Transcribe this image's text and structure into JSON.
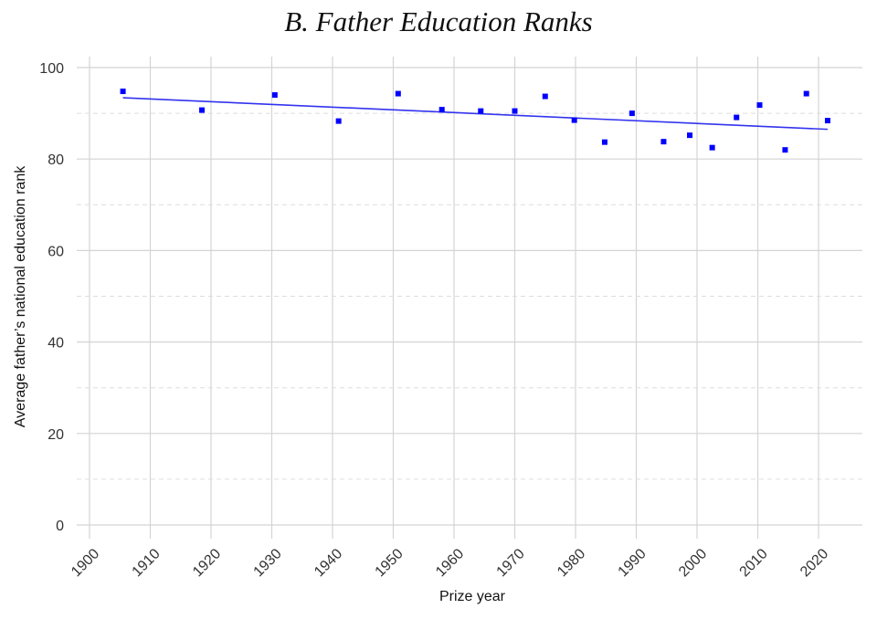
{
  "chart_data": {
    "type": "scatter",
    "title": "B. Father Education Ranks",
    "xlabel": "Prize year",
    "ylabel": "Average father’s national education rank",
    "xlim": [
      1900,
      2025
    ],
    "ylim": [
      0,
      100
    ],
    "x_ticks": [
      1900,
      1910,
      1920,
      1930,
      1940,
      1950,
      1960,
      1970,
      1980,
      1990,
      2000,
      2010,
      2020
    ],
    "y_ticks": [
      0,
      20,
      40,
      60,
      80,
      100
    ],
    "grid": true,
    "point_color": "#0000ff",
    "fit_color": "#3333ee",
    "points": [
      {
        "x": 1905.5,
        "y": 94.8
      },
      {
        "x": 1918.5,
        "y": 90.7
      },
      {
        "x": 1930.5,
        "y": 94.0
      },
      {
        "x": 1941.0,
        "y": 88.3
      },
      {
        "x": 1950.8,
        "y": 94.3
      },
      {
        "x": 1958.0,
        "y": 90.8
      },
      {
        "x": 1964.4,
        "y": 90.5
      },
      {
        "x": 1970.0,
        "y": 90.5
      },
      {
        "x": 1975.0,
        "y": 93.7
      },
      {
        "x": 1979.8,
        "y": 88.5
      },
      {
        "x": 1984.8,
        "y": 83.7
      },
      {
        "x": 1989.3,
        "y": 90.0
      },
      {
        "x": 1994.5,
        "y": 83.8
      },
      {
        "x": 1998.8,
        "y": 85.2
      },
      {
        "x": 2002.5,
        "y": 82.5
      },
      {
        "x": 2006.5,
        "y": 89.1
      },
      {
        "x": 2010.3,
        "y": 91.8
      },
      {
        "x": 2014.5,
        "y": 82.0
      },
      {
        "x": 2018.0,
        "y": 94.3
      },
      {
        "x": 2021.5,
        "y": 88.4
      }
    ],
    "fit_line": {
      "x": [
        1905.5,
        2021.5
      ],
      "y": [
        93.4,
        86.5
      ]
    }
  }
}
